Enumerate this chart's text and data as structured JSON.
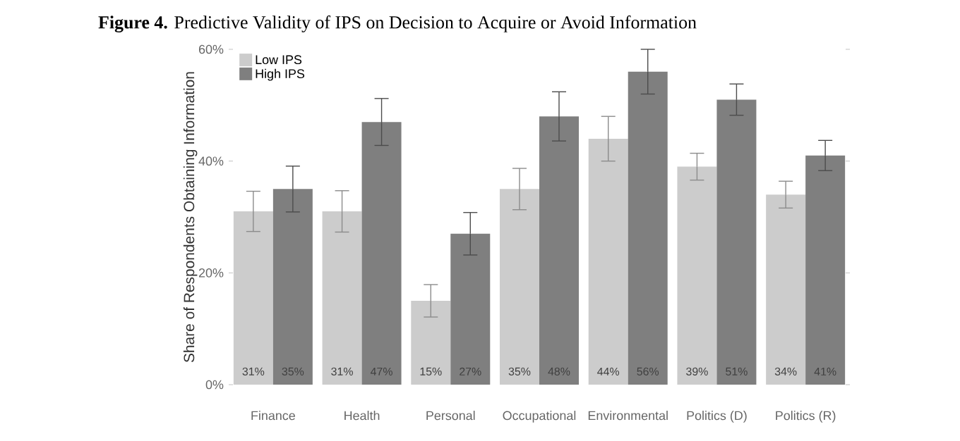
{
  "chart_data": {
    "type": "bar",
    "title": "**Figure 4.** Predictive Validity of IPS on Decision to Acquire or Avoid Information",
    "ylabel": "Share of Respondents Obtaining Information",
    "categories": [
      "Finance",
      "Health",
      "Personal",
      "Occupational",
      "Environmental",
      "Politics (D)",
      "Politics (R)"
    ],
    "series": [
      {
        "name": "Low IPS",
        "color": "#cccccc",
        "values": [
          31,
          31,
          15,
          35,
          44,
          39,
          34
        ],
        "errors": [
          3.6,
          3.7,
          2.9,
          3.7,
          4.0,
          2.4,
          2.4
        ],
        "value_labels": [
          "31%",
          "31%",
          "15%",
          "35%",
          "44%",
          "39%",
          "34%"
        ]
      },
      {
        "name": "High IPS",
        "color": "#7f7f7f",
        "values": [
          35,
          47,
          27,
          48,
          56,
          51,
          41
        ],
        "errors": [
          4.1,
          4.2,
          3.8,
          4.4,
          4.0,
          2.8,
          2.7
        ],
        "value_labels": [
          "35%",
          "47%",
          "27%",
          "48%",
          "56%",
          "51%",
          "41%"
        ]
      }
    ],
    "ylim": [
      0,
      60
    ],
    "yticks": [
      {
        "value": 0,
        "label": "0%"
      },
      {
        "value": 20,
        "label": "20%"
      },
      {
        "value": 40,
        "label": "40%"
      },
      {
        "value": 60,
        "label": "60%"
      }
    ],
    "legend": "top left",
    "grid": false
  }
}
